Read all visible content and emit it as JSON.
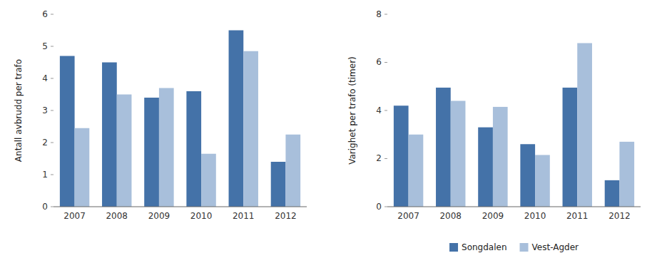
{
  "chart_data": [
    {
      "type": "bar",
      "ylabel": "Antall avbrudd per trafo",
      "categories": [
        "2007",
        "2008",
        "2009",
        "2010",
        "2011",
        "2012"
      ],
      "series": [
        {
          "name": "Songdalen",
          "color": "#4472a8",
          "values": [
            4.7,
            4.5,
            3.4,
            3.6,
            5.5,
            1.4
          ]
        },
        {
          "name": "Vest-Agder",
          "color": "#a8bfdb",
          "values": [
            2.45,
            3.5,
            3.7,
            1.65,
            4.85,
            2.25
          ]
        }
      ],
      "ylim": [
        0,
        6
      ],
      "yticks": [
        0,
        1,
        2,
        3,
        4,
        5,
        6
      ],
      "grid": false
    },
    {
      "type": "bar",
      "ylabel": "Varighet per trafo (timer)",
      "categories": [
        "2007",
        "2008",
        "2009",
        "2010",
        "2011",
        "2012"
      ],
      "series": [
        {
          "name": "Songdalen",
          "color": "#4472a8",
          "values": [
            4.2,
            4.95,
            3.3,
            2.6,
            4.95,
            1.1
          ]
        },
        {
          "name": "Vest-Agder",
          "color": "#a8bfdb",
          "values": [
            3.0,
            4.4,
            4.15,
            2.15,
            6.8,
            2.7
          ]
        }
      ],
      "ylim": [
        0,
        8
      ],
      "yticks": [
        0,
        2,
        4,
        6,
        8
      ],
      "grid": false,
      "legend": "bottom"
    }
  ]
}
